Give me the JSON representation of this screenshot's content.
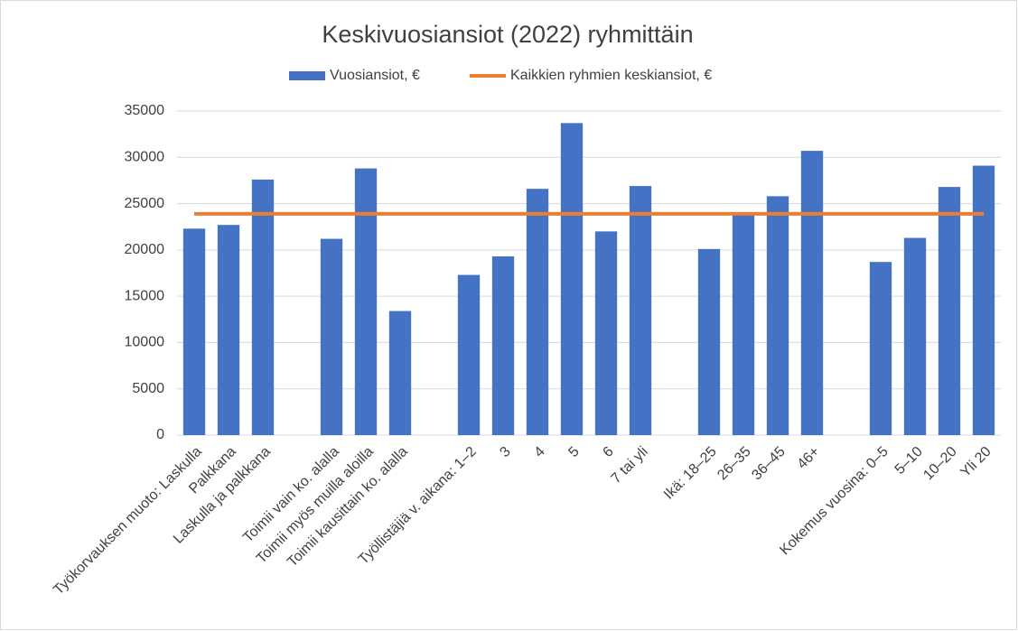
{
  "chart_data": {
    "type": "bar",
    "title": "Keskivuosiansiot (2022) ryhmittäin",
    "categories": [
      "Työkorvauksen muoto:  Laskulla",
      "Palkkana",
      "Laskulla ja palkkana",
      null,
      "Toimii vain ko. alalla",
      "Toimii myös muilla aloilla",
      "Toimii kausittain ko. alalla",
      null,
      "Työllistäjiä v. aikana:  1–2",
      "3",
      "4",
      "5",
      "6",
      "7 tai yli",
      null,
      "Ikä:  18–25",
      "26–35",
      "36–45",
      "46+",
      null,
      "Kokemus vuosina:  0–5",
      "5–10",
      "10–20",
      "Yli 20"
    ],
    "series": [
      {
        "name": "Vuosiansiot, €",
        "type": "bar",
        "color": "#4472c4",
        "values": [
          22300,
          22700,
          27600,
          null,
          21200,
          28800,
          13400,
          null,
          17300,
          19300,
          26600,
          33700,
          22000,
          26900,
          null,
          20100,
          23900,
          25800,
          30700,
          null,
          18700,
          21300,
          26800,
          29100
        ]
      },
      {
        "name": "Kaikkien ryhmien keskiansiot, €",
        "type": "line",
        "color": "#ed7d31",
        "values": [
          23900,
          23900,
          23900,
          23900,
          23900,
          23900,
          23900,
          23900,
          23900,
          23900,
          23900,
          23900,
          23900,
          23900,
          23900,
          23900,
          23900,
          23900,
          23900,
          23900,
          23900,
          23900,
          23900,
          23900
        ]
      }
    ],
    "ylim": [
      0,
      35000
    ],
    "yticks": [
      0,
      5000,
      10000,
      15000,
      20000,
      25000,
      30000,
      35000
    ],
    "grid": true,
    "legend": "top"
  }
}
